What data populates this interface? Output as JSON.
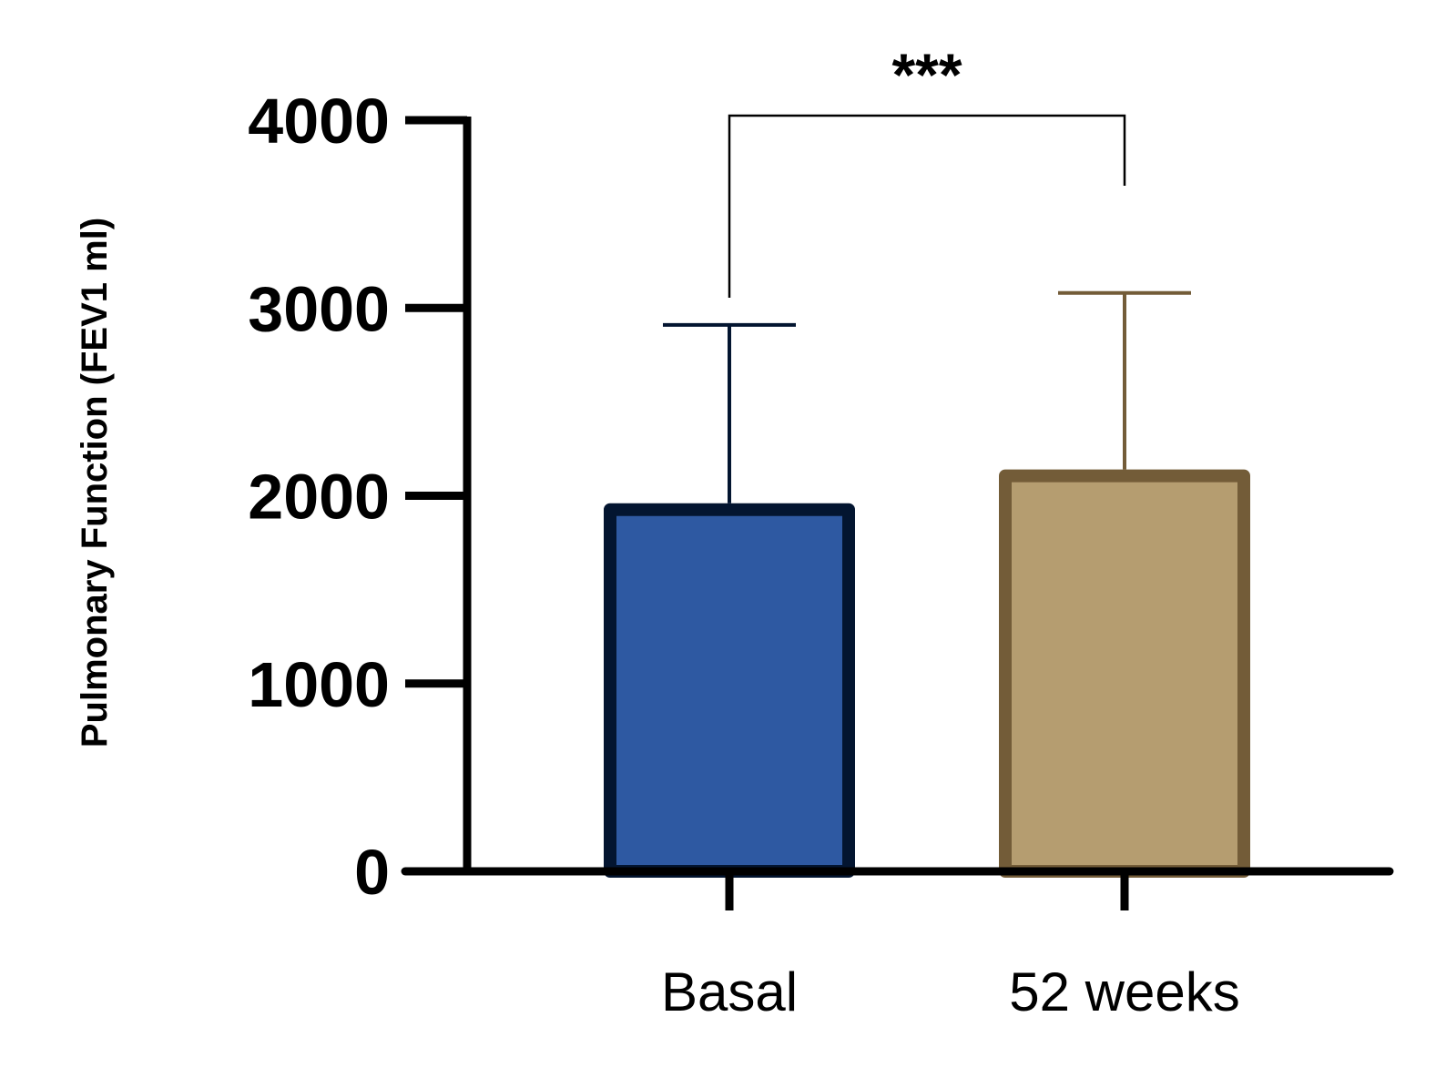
{
  "chart_data": {
    "type": "bar",
    "title": "",
    "xlabel": "",
    "ylabel": "Pulmonary Function (FEV1 ml)",
    "ylim": [
      0,
      4000
    ],
    "yticks": [
      0,
      1000,
      2000,
      3000,
      4000
    ],
    "categories": [
      "Basal",
      "52 weeks"
    ],
    "series": [
      {
        "values": [
          1960,
          2140
        ],
        "error_upper": [
          2910,
          3080
        ],
        "fill_colors": [
          "#2E59A2",
          "#B59D70"
        ],
        "edge_colors": [
          "#031530",
          "#735C38"
        ]
      }
    ],
    "annotations": [
      {
        "type": "significance-bracket",
        "between": [
          "Basal",
          "52 weeks"
        ],
        "text": "***"
      }
    ],
    "grid": false,
    "legend": "none"
  }
}
